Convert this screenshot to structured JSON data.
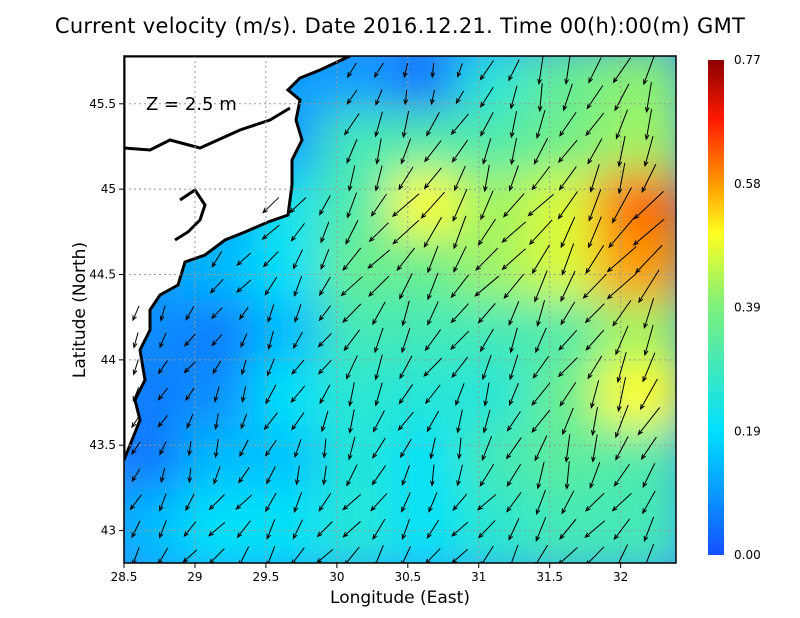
{
  "chart_data": {
    "type": "heatmap",
    "title": "Current velocity (m/s). Date 2016.12.21. Time 00(h):00(m) GMT",
    "xlabel": "Longitude (East)",
    "ylabel": "Latitude (North)",
    "annotation": "Z = 2.5 m",
    "xlim": [
      28.5,
      32.39
    ],
    "ylim": [
      42.81,
      45.78
    ],
    "xticks": [
      "28.5",
      "29",
      "29.5",
      "30",
      "30.5",
      "31",
      "31.5",
      "32"
    ],
    "xtick_values": [
      28.5,
      29,
      29.5,
      30,
      30.5,
      31,
      31.5,
      32
    ],
    "yticks": [
      "43",
      "43.5",
      "44",
      "44.5",
      "45",
      "45.5"
    ],
    "ytick_values": [
      43,
      43.5,
      44,
      44.5,
      45,
      45.5
    ],
    "grid": true,
    "colorbar": {
      "ticks": [
        "0.00",
        "0.19",
        "0.39",
        "0.58",
        "0.77"
      ],
      "range": [
        0,
        0.77
      ],
      "colors": [
        "#1450ff",
        "#00e0ff",
        "#7cf07c",
        "#ffff20",
        "#ff9a00",
        "#ff1a00",
        "#8a0000"
      ]
    },
    "speed_grid": {
      "lon": [
        28.74,
        29.23,
        29.72,
        30.2,
        30.69,
        31.17,
        31.66,
        32.15
      ],
      "lat": [
        45.6,
        45.2,
        44.8,
        44.4,
        44.0,
        43.6,
        43.2,
        42.9
      ],
      "values": [
        [
          null,
          null,
          null,
          0.1,
          0.05,
          0.25,
          0.35,
          0.4
        ],
        [
          null,
          null,
          null,
          0.3,
          0.32,
          0.32,
          0.37,
          0.42
        ],
        [
          null,
          null,
          0.22,
          0.32,
          0.5,
          0.42,
          0.47,
          0.62
        ],
        [
          null,
          0.14,
          0.2,
          0.36,
          0.36,
          0.42,
          0.47,
          0.58
        ],
        [
          0.08,
          0.06,
          0.14,
          0.3,
          0.3,
          0.3,
          0.32,
          0.42
        ],
        [
          0.06,
          0.08,
          0.2,
          0.26,
          0.25,
          0.25,
          0.36,
          0.5
        ],
        [
          0.05,
          0.14,
          0.15,
          0.25,
          0.2,
          0.3,
          0.34,
          0.32
        ],
        [
          0.14,
          0.2,
          0.2,
          0.25,
          0.2,
          0.26,
          0.3,
          0.3
        ]
      ],
      "direction_deg_by_row": [
        200,
        205,
        215,
        215,
        210,
        205,
        200,
        215
      ]
    }
  }
}
